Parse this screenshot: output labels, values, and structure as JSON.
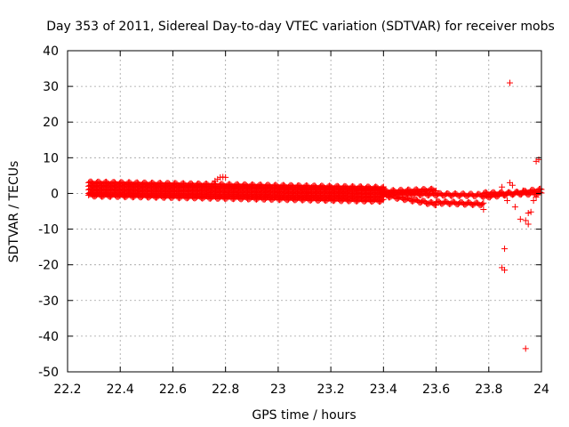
{
  "chart_data": {
    "type": "scatter",
    "title": "Day 353 of 2011, Sidereal Day-to-day VTEC variation (SDTVAR) for receiver mobs",
    "xlabel": "GPS time / hours",
    "ylabel": "SDTVAR / TECUs",
    "xlim": [
      22.2,
      24
    ],
    "ylim": [
      -50,
      40
    ],
    "xticks": [
      22.2,
      22.4,
      22.6,
      22.8,
      23,
      23.2,
      23.4,
      23.6,
      23.8,
      24
    ],
    "xtick_labels": [
      "22.2",
      "22.4",
      "22.6",
      "22.8",
      "23",
      "23.2",
      "23.4",
      "23.6",
      "23.8",
      "24"
    ],
    "yticks": [
      40,
      30,
      20,
      10,
      0,
      -10,
      -20,
      -30,
      -40,
      -50
    ],
    "ytick_labels": [
      "40",
      "30",
      "20",
      "10",
      "0",
      "-10",
      "-20",
      "-30",
      "-40",
      "-50"
    ],
    "grid": true,
    "marker": "+",
    "color": "#ff0000",
    "band_series": [
      {
        "start": [
          22.28,
          3.0
        ],
        "end": [
          23.4,
          1.5
        ]
      },
      {
        "start": [
          22.28,
          2.0
        ],
        "end": [
          23.4,
          1.0
        ]
      },
      {
        "start": [
          22.28,
          1.0
        ],
        "end": [
          23.4,
          0.0
        ]
      },
      {
        "start": [
          22.28,
          0.0
        ],
        "end": [
          23.4,
          -1.0
        ]
      },
      {
        "start": [
          22.28,
          -0.5
        ],
        "end": [
          23.4,
          -2.0
        ]
      },
      {
        "start": [
          23.4,
          0.0
        ],
        "end": [
          23.78,
          -0.5
        ]
      },
      {
        "start": [
          23.4,
          -0.5
        ],
        "end": [
          23.6,
          -3.0
        ]
      },
      {
        "start": [
          23.6,
          -2.5
        ],
        "end": [
          23.78,
          -3.0
        ]
      },
      {
        "start": [
          23.4,
          0.5
        ],
        "end": [
          23.6,
          1.0
        ]
      },
      {
        "start": [
          23.78,
          0.0
        ],
        "end": [
          24.0,
          0.0
        ]
      },
      {
        "start": [
          23.78,
          -1.0
        ],
        "end": [
          24.0,
          1.0
        ]
      }
    ],
    "points": [
      [
        22.76,
        3.5
      ],
      [
        22.77,
        4.0
      ],
      [
        22.78,
        4.5
      ],
      [
        22.79,
        4.6
      ],
      [
        22.8,
        4.5
      ],
      [
        23.78,
        -4.5
      ],
      [
        23.85,
        1.8
      ],
      [
        23.87,
        -2.0
      ],
      [
        23.88,
        3.0
      ],
      [
        23.89,
        2.3
      ],
      [
        23.9,
        -3.8
      ],
      [
        23.92,
        -7.2
      ],
      [
        23.94,
        -7.6
      ],
      [
        23.95,
        -5.5
      ],
      [
        23.96,
        -5.2
      ],
      [
        23.97,
        -2.0
      ],
      [
        23.98,
        9.0
      ],
      [
        23.99,
        9.5
      ],
      [
        23.86,
        -15.5
      ],
      [
        23.85,
        -20.8
      ],
      [
        23.86,
        -21.5
      ],
      [
        23.88,
        31.0
      ],
      [
        23.94,
        -43.5
      ],
      [
        23.95,
        -8.6
      ],
      [
        23.93,
        0.8
      ],
      [
        23.98,
        -1.0
      ]
    ]
  }
}
